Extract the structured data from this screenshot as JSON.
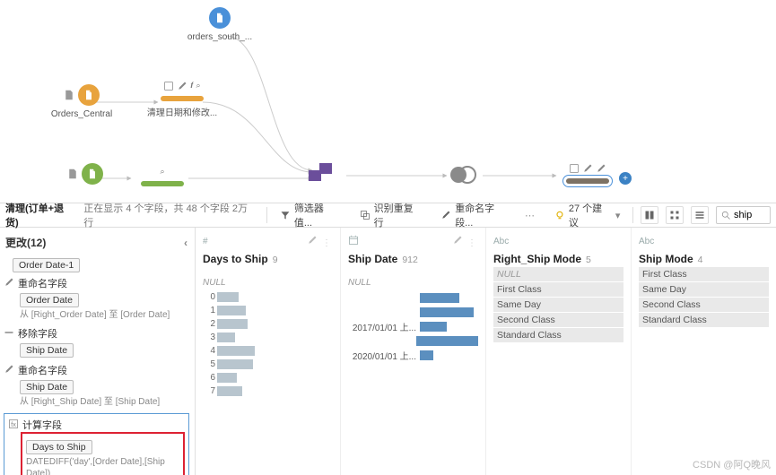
{
  "colors": {
    "orange": "#e8a33d",
    "blue": "#4a90d9",
    "green": "#7fb24a",
    "purple": "#6b4e9b",
    "grey_union": "#8a8a8a",
    "brown": "#7d7264",
    "bar_grey": "#b8c5ce",
    "bar_blue": "#5b8fbf"
  },
  "flow": {
    "orders_south": {
      "label": "orders_south_..."
    },
    "orders_central": {
      "label": "Orders_Central"
    },
    "clean1": {
      "label": "清理日期和修改..."
    },
    "extra_input": {
      "label": ""
    },
    "clean2": {
      "label": ""
    },
    "union": {
      "label": ""
    },
    "join": {
      "label": ""
    },
    "clean_selected": {
      "label": ""
    }
  },
  "toolbar": {
    "title": "清理(订单+退货)",
    "subtitle": "正在显示 4 个字段，共 48 个字段 2万 行",
    "filter": "筛选器值...",
    "duplicate": "识别重复行",
    "rename": "重命名字段...",
    "suggestions": "27 个建议",
    "search_value": "ship"
  },
  "changes": {
    "header": "更改(12)",
    "prev_chip": "Order Date-1",
    "items": [
      {
        "kind": "rename",
        "title": "重命名字段",
        "chip": "Order Date",
        "desc": "从 [Right_Order Date] 至 [Order Date]"
      },
      {
        "kind": "remove",
        "title": "移除字段",
        "chip": "Ship Date",
        "desc": ""
      },
      {
        "kind": "rename",
        "title": "重命名字段",
        "chip": "Ship Date",
        "desc": "从 [Right_Ship Date] 至 [Ship Date]"
      },
      {
        "kind": "calc",
        "title": "计算字段",
        "chip": "Days to Ship",
        "desc": "DATEDIFF('day',[Order Date],[Ship Date])"
      }
    ]
  },
  "cards": [
    {
      "type_icon": "#",
      "head_actions": "evt",
      "title": "Days to Ship",
      "count": "9",
      "kind": "histogram",
      "null_label": "NULL",
      "rows": [
        {
          "lbl": "0",
          "w": 24
        },
        {
          "lbl": "1",
          "w": 32
        },
        {
          "lbl": "2",
          "w": 34
        },
        {
          "lbl": "3",
          "w": 20
        },
        {
          "lbl": "4",
          "w": 42
        },
        {
          "lbl": "5",
          "w": 40
        },
        {
          "lbl": "6",
          "w": 22
        },
        {
          "lbl": "7",
          "w": 28
        }
      ]
    },
    {
      "type_icon": "calendar",
      "head_actions": "evt",
      "title": "Ship Date",
      "count": "912",
      "kind": "datebars",
      "null_label": "NULL",
      "rows": [
        {
          "lbl": "",
          "w": 44,
          "color": "bar_blue"
        },
        {
          "lbl": "",
          "w": 60,
          "color": "bar_blue"
        },
        {
          "lbl": "2017/01/01 上...",
          "w": 30,
          "color": "bar_blue"
        },
        {
          "lbl": "",
          "w": 72,
          "color": "bar_blue"
        },
        {
          "lbl": "2020/01/01 上...",
          "w": 15,
          "color": "bar_blue"
        }
      ]
    },
    {
      "type_icon": "Abc",
      "head_actions": "",
      "title": "Right_Ship Mode",
      "count": "5",
      "kind": "values",
      "null_label": "NULL",
      "rows": [
        {
          "lbl": "First Class"
        },
        {
          "lbl": "Same Day"
        },
        {
          "lbl": "Second Class"
        },
        {
          "lbl": "Standard Class"
        }
      ]
    },
    {
      "type_icon": "Abc",
      "head_actions": "",
      "title": "Ship Mode",
      "count": "4",
      "kind": "values",
      "null_label": "",
      "rows": [
        {
          "lbl": "First Class"
        },
        {
          "lbl": "Same Day"
        },
        {
          "lbl": "Second Class"
        },
        {
          "lbl": "Standard Class"
        }
      ]
    }
  ],
  "watermark": "CSDN @阿Q晚风"
}
